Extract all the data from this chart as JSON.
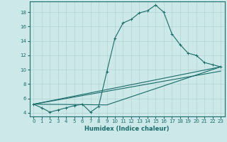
{
  "xlabel": "Humidex (Indice chaleur)",
  "background_color": "#cce8e8",
  "line_color": "#1a6b6b",
  "grid_color": "#b0d4d4",
  "xlim": [
    -0.5,
    23.5
  ],
  "ylim": [
    3.5,
    19.5
  ],
  "xticks": [
    0,
    1,
    2,
    3,
    4,
    5,
    6,
    7,
    8,
    9,
    10,
    11,
    12,
    13,
    14,
    15,
    16,
    17,
    18,
    19,
    20,
    21,
    22,
    23
  ],
  "yticks": [
    4,
    6,
    8,
    10,
    12,
    14,
    16,
    18
  ],
  "series_main": {
    "x": [
      0,
      1,
      2,
      3,
      4,
      5,
      6,
      7,
      8,
      9,
      10,
      11,
      12,
      13,
      14,
      15,
      16,
      17,
      18,
      19,
      20,
      21,
      22,
      23
    ],
    "y": [
      5.2,
      4.7,
      4.1,
      4.4,
      4.7,
      5.0,
      5.2,
      4.1,
      4.9,
      9.7,
      14.4,
      16.5,
      17.0,
      17.9,
      18.2,
      19.0,
      18.0,
      15.0,
      13.5,
      12.3,
      12.0,
      11.0,
      10.7,
      10.4
    ]
  },
  "series_lines": [
    {
      "x": [
        0,
        23
      ],
      "y": [
        5.2,
        10.4
      ]
    },
    {
      "x": [
        0,
        6,
        9,
        23
      ],
      "y": [
        5.2,
        5.15,
        5.1,
        10.4
      ]
    },
    {
      "x": [
        0,
        23
      ],
      "y": [
        5.2,
        9.8
      ]
    }
  ],
  "tick_fontsize": 5,
  "xlabel_fontsize": 6,
  "xlabel_fontweight": "bold"
}
